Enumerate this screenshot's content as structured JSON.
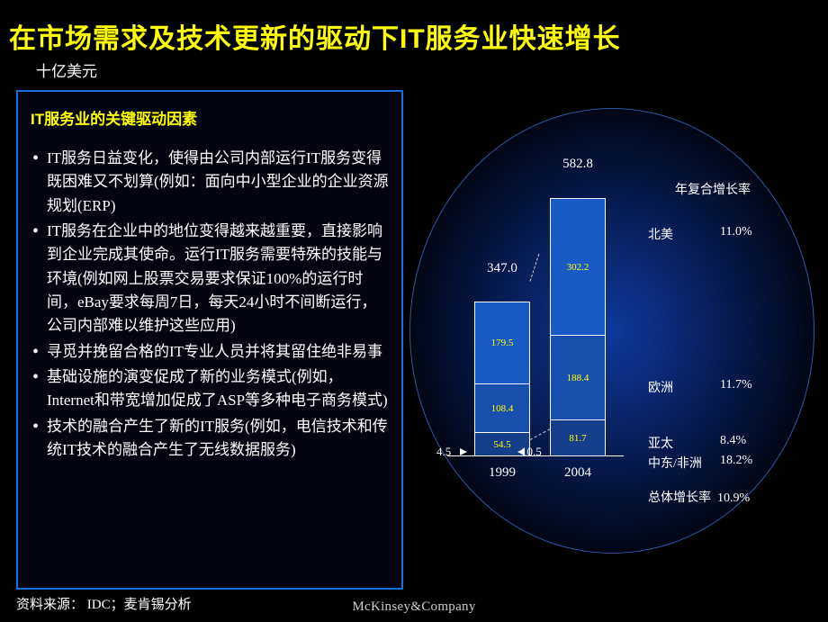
{
  "title": "在市场需求及技术更新的驱动下IT服务业快速增长",
  "unit": "十亿美元",
  "box": {
    "title": "IT服务业的关键驱动因素",
    "bullets": [
      "IT服务日益变化，使得由公司内部运行IT服务变得既困难又不划算(例如：面向中小型企业的企业资源规划(ERP)",
      "IT服务在企业中的地位变得越来越重要，直接影响到企业完成其使命。运行IT服务需要特殊的技能与环境(例如网上股票交易要求保证100%的运行时间，eBay要求每周7日，每天24小时不间断运行，公司内部难以维护这些应用)",
      "寻觅并挽留合格的IT专业人员并将其留住绝非易事",
      "基础设施的演变促成了新的业务模式(例如，Internet和带宽增加促成了ASP等多种电子商务模式)",
      "技术的融合产生了新的IT服务(例如，电信技术和传统IT技术的融合产生了无线数据服务)"
    ]
  },
  "chart": {
    "years": [
      "1999",
      "2004"
    ],
    "totals": [
      "347.0",
      "582.8"
    ],
    "base_values": [
      "4.5",
      "10.5"
    ],
    "bars": [
      {
        "segments": [
          {
            "h": 90,
            "color": "#1a5ac4",
            "label": "179.5"
          },
          {
            "h": 54,
            "color": "#184fad",
            "label": "108.4"
          },
          {
            "h": 27,
            "color": "#153f8a",
            "label": "54.5"
          }
        ]
      },
      {
        "segments": [
          {
            "h": 151,
            "color": "#1a5ac4",
            "label": "302.2"
          },
          {
            "h": 94,
            "color": "#184fad",
            "label": "188.4"
          },
          {
            "h": 41,
            "color": "#153f8a",
            "label": "81.7"
          }
        ]
      }
    ],
    "cagr_header": "年复合增长率",
    "regions": [
      {
        "name": "北美",
        "pct": "11.0%"
      },
      {
        "name": "欧洲",
        "pct": "11.7%"
      },
      {
        "name": "亚太",
        "pct": "8.4%"
      },
      {
        "name": "中东/非洲",
        "pct": "18.2%"
      }
    ],
    "overall_label": "总体增长率",
    "overall_pct": "10.9%"
  },
  "source": "资料来源：  IDC；麦肯锡分析",
  "brand": "McKinsey&Company"
}
